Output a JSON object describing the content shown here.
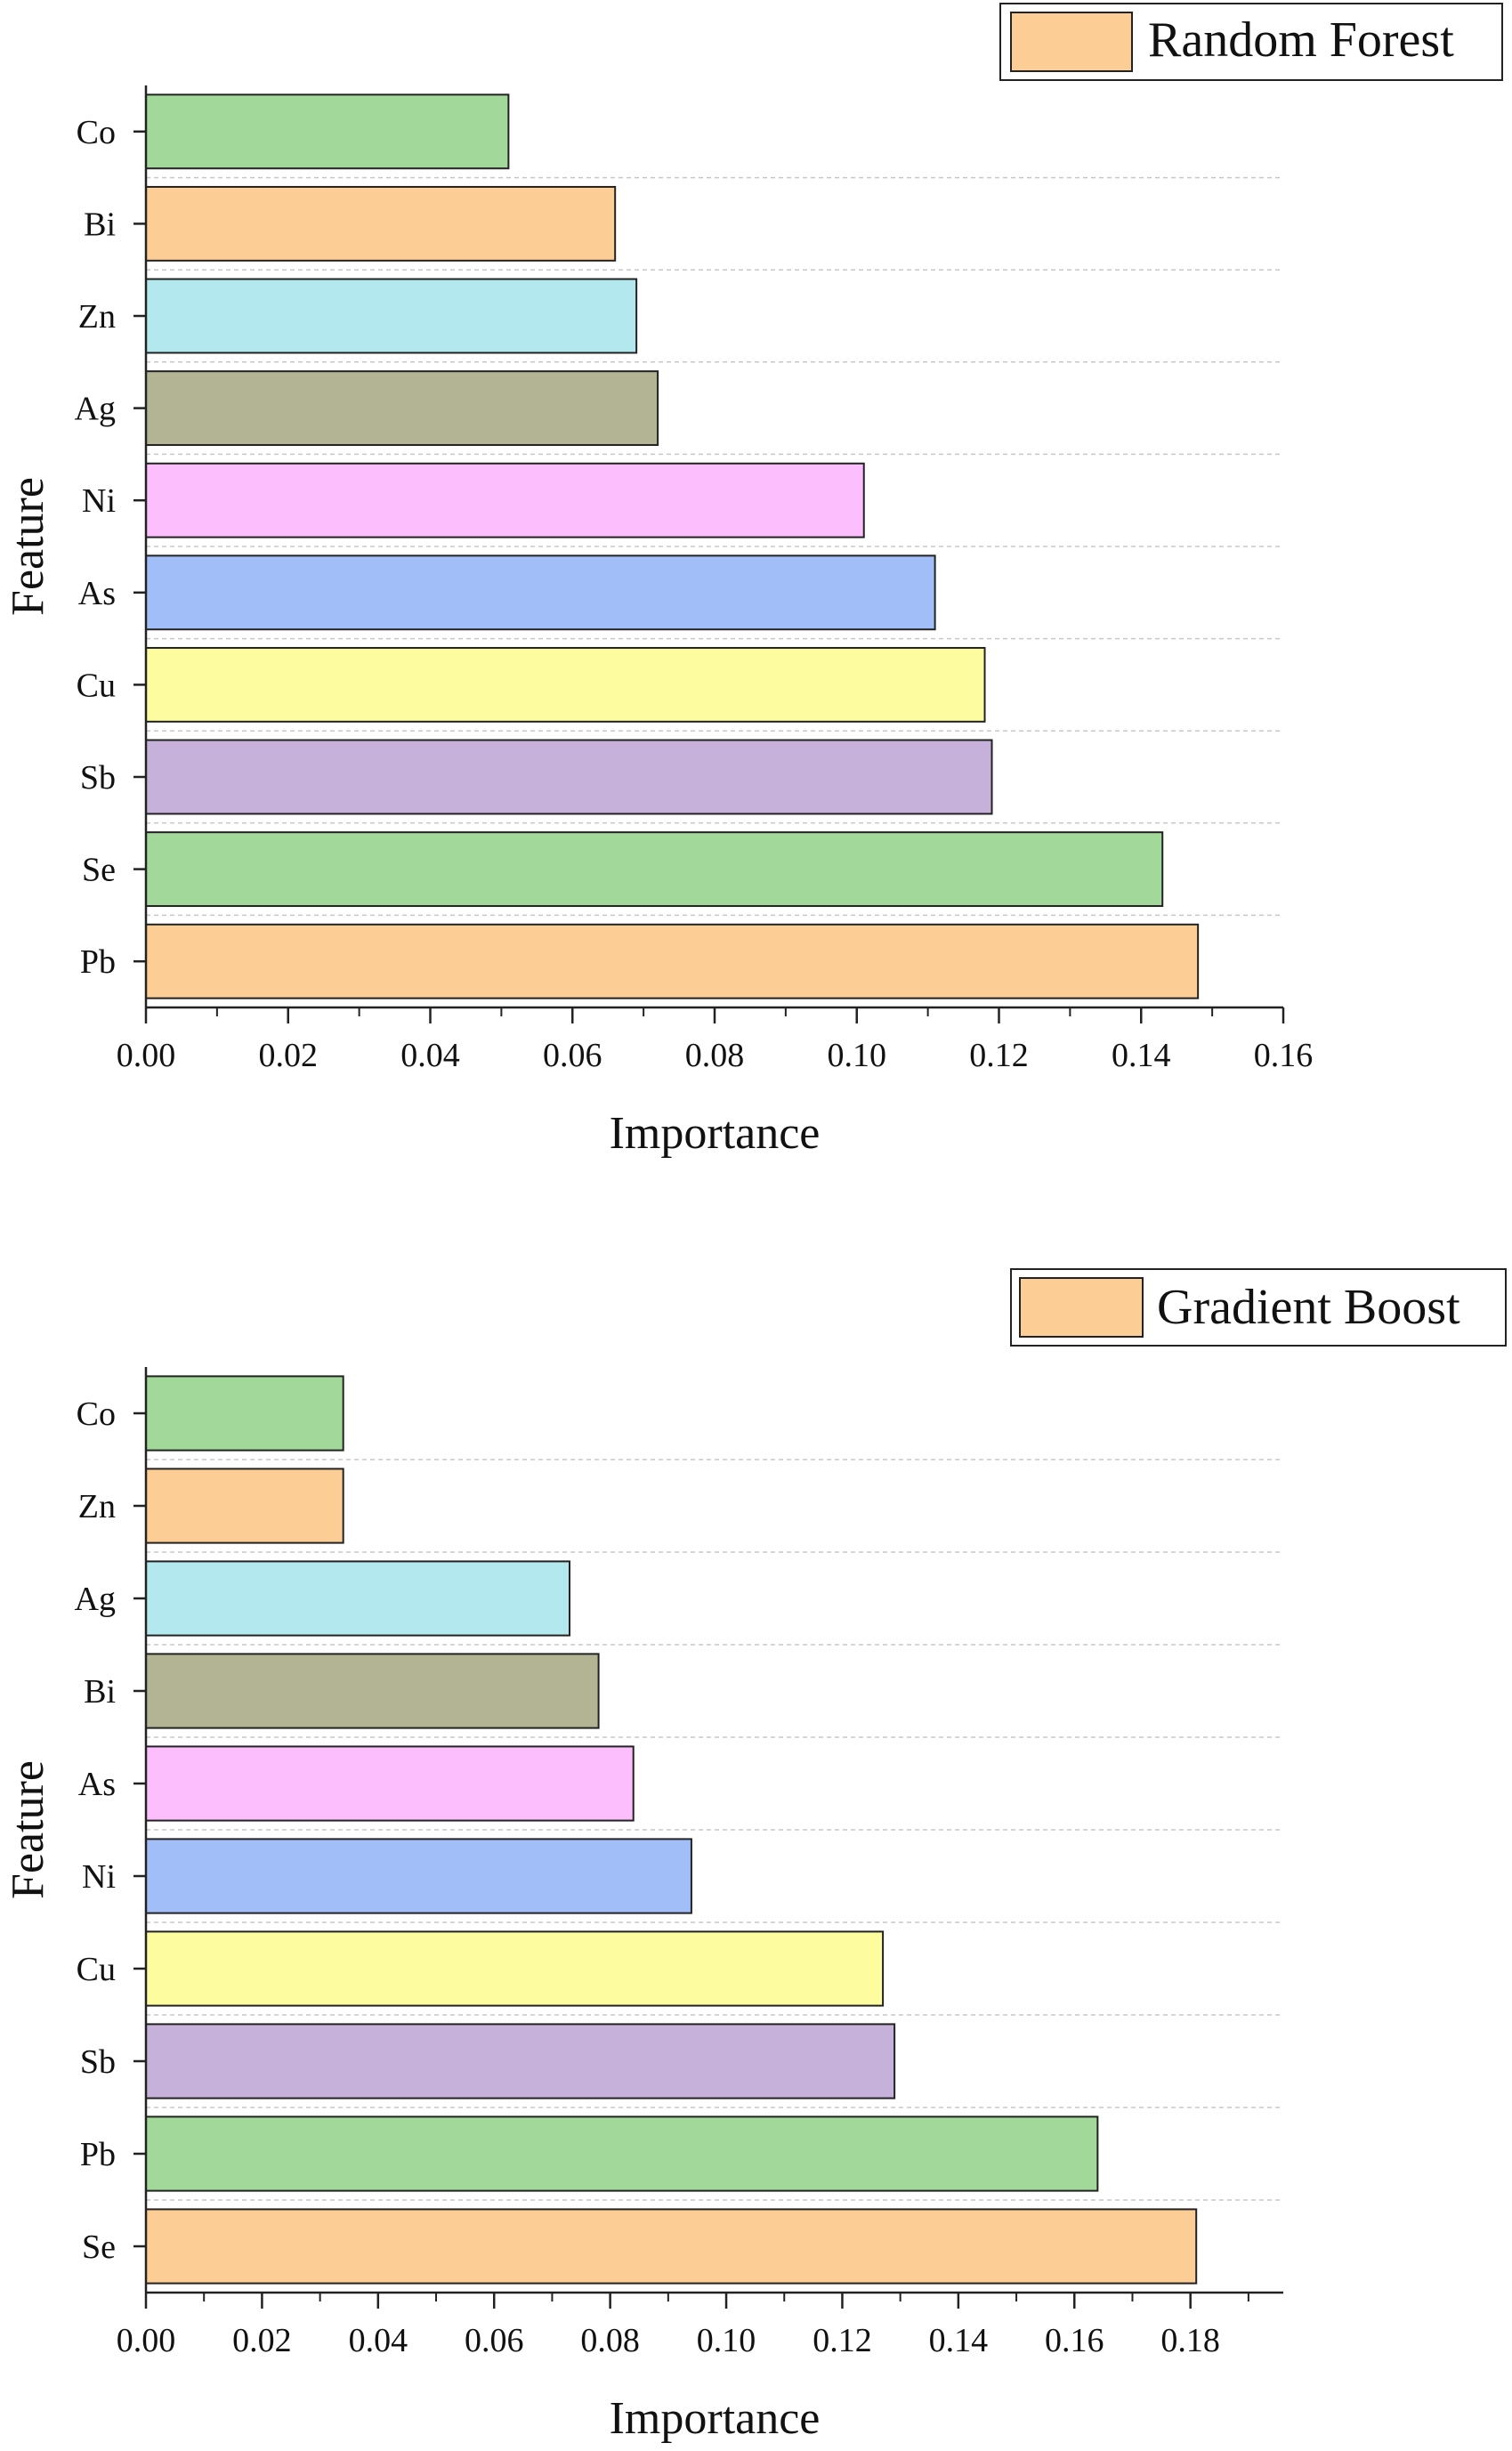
{
  "chart_data": [
    {
      "type": "bar",
      "orientation": "horizontal",
      "categories": [
        "Co",
        "Bi",
        "Zn",
        "Ag",
        "Ni",
        "As",
        "Cu",
        "Sb",
        "Se",
        "Pb"
      ],
      "series": [
        {
          "name": "Random Forest",
          "values": [
            0.051,
            0.066,
            0.069,
            0.072,
            0.101,
            0.111,
            0.118,
            0.119,
            0.143,
            0.148
          ]
        }
      ],
      "bar_colors": [
        "#a2d89a",
        "#fdcd96",
        "#b3e8ee",
        "#b3b494",
        "#fdbefe",
        "#a1bef9",
        "#fdfda0",
        "#c5b1d9",
        "#a2d89a",
        "#fdcd96"
      ],
      "xlabel": "Importance",
      "ylabel": "Feature",
      "xlim": [
        0,
        0.16
      ],
      "xticks": [
        "0.00",
        "0.02",
        "0.04",
        "0.06",
        "0.08",
        "0.10",
        "0.12",
        "0.14",
        "0.16"
      ],
      "grid": "horizontal dashed",
      "legend_position": "top-right"
    },
    {
      "type": "bar",
      "orientation": "horizontal",
      "categories": [
        "Co",
        "Zn",
        "Ag",
        "Bi",
        "As",
        "Ni",
        "Cu",
        "Sb",
        "Pb",
        "Se"
      ],
      "series": [
        {
          "name": "Gradient Boost",
          "values": [
            0.034,
            0.034,
            0.073,
            0.078,
            0.084,
            0.094,
            0.127,
            0.129,
            0.164,
            0.181
          ]
        }
      ],
      "bar_colors": [
        "#a2d89a",
        "#fdcd96",
        "#b3e8ee",
        "#b3b494",
        "#fdbefe",
        "#a1bef9",
        "#fdfda0",
        "#c5b1d9",
        "#a2d89a",
        "#fdcd96"
      ],
      "xlabel": "Importance",
      "ylabel": "Feature",
      "xlim": [
        0,
        0.196
      ],
      "xticks": [
        "0.00",
        "0.02",
        "0.04",
        "0.06",
        "0.08",
        "0.10",
        "0.12",
        "0.14",
        "0.16",
        "0.18"
      ],
      "grid": "horizontal dashed",
      "legend_position": "top-right"
    }
  ],
  "legend_swatch_color": "#fdcd96"
}
